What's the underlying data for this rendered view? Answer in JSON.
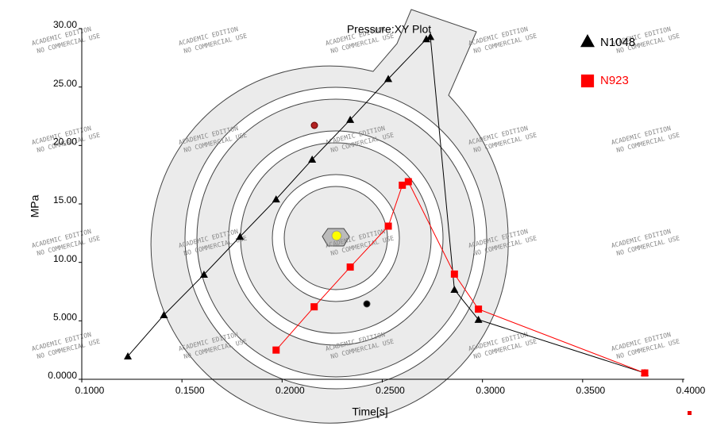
{
  "chart_data": {
    "type": "line",
    "title": "Pressure:XY Plot",
    "x_label": "Time[s]",
    "y_label": "MPa",
    "xlim": [
      0.1,
      0.4
    ],
    "ylim": [
      0,
      30
    ],
    "xticks": [
      {
        "value": 0.1,
        "label": "0.1000"
      },
      {
        "value": 0.15,
        "label": "0.1500"
      },
      {
        "value": 0.2,
        "label": "0.2000"
      },
      {
        "value": 0.25,
        "label": "0.2500"
      },
      {
        "value": 0.3,
        "label": "0.3000"
      },
      {
        "value": 0.35,
        "label": "0.3500"
      },
      {
        "value": 0.4,
        "label": "0.4000"
      }
    ],
    "yticks": [
      {
        "value": 0,
        "label": "0.0000"
      },
      {
        "value": 5,
        "label": "5.000"
      },
      {
        "value": 10,
        "label": "10.00"
      },
      {
        "value": 15,
        "label": "15.00"
      },
      {
        "value": 20,
        "label": "20.00"
      },
      {
        "value": 25,
        "label": "25.00"
      },
      {
        "value": 30,
        "label": "30.00"
      }
    ],
    "watermark": [
      "ACADEMIC EDITION",
      "NO COMMERCIAL USE"
    ],
    "series": [
      {
        "name": "N1048",
        "color": "#000000",
        "marker": "triangle",
        "x": [
          0.123,
          0.141,
          0.161,
          0.179,
          0.197,
          0.215,
          0.234,
          0.253,
          0.272,
          0.274,
          0.286,
          0.298,
          0.381
        ],
        "values": [
          1.97,
          5.5,
          8.96,
          12.2,
          15.4,
          18.8,
          22.2,
          25.7,
          29.1,
          29.3,
          7.67,
          5.1,
          0.54
        ]
      },
      {
        "name": "N923",
        "color": "#ff0000",
        "marker": "square",
        "x": [
          0.197,
          0.216,
          0.234,
          0.253,
          0.26,
          0.263,
          0.286,
          0.298,
          0.381
        ],
        "values": [
          2.5,
          6.2,
          9.6,
          13.1,
          16.6,
          16.9,
          9.0,
          6.0,
          0.54
        ]
      }
    ]
  }
}
